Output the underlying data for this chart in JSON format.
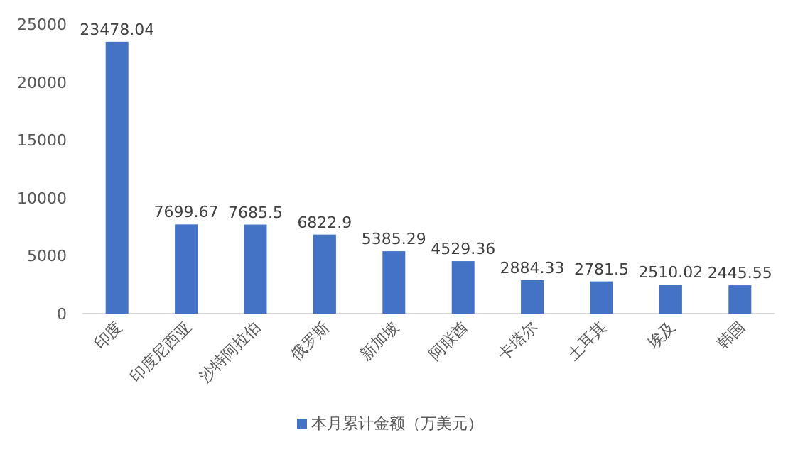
{
  "chart_data": {
    "type": "bar",
    "categories": [
      "印度",
      "印度尼西亚",
      "沙特阿拉伯",
      "俄罗斯",
      "新加坡",
      "阿联酋",
      "卡塔尔",
      "土耳其",
      "埃及",
      "韩国"
    ],
    "series": [
      {
        "name": "本月累计金额（万美元）",
        "color": "#4472c4",
        "values": [
          23478.04,
          7699.67,
          7685.5,
          6822.9,
          5385.29,
          4529.36,
          2884.33,
          2781.5,
          2510.02,
          2445.55
        ]
      }
    ],
    "ylim": [
      0,
      25000
    ],
    "yticks": [
      0,
      5000,
      10000,
      15000,
      20000,
      25000
    ],
    "data_labels": true,
    "legend": "bottom",
    "grid": false
  }
}
